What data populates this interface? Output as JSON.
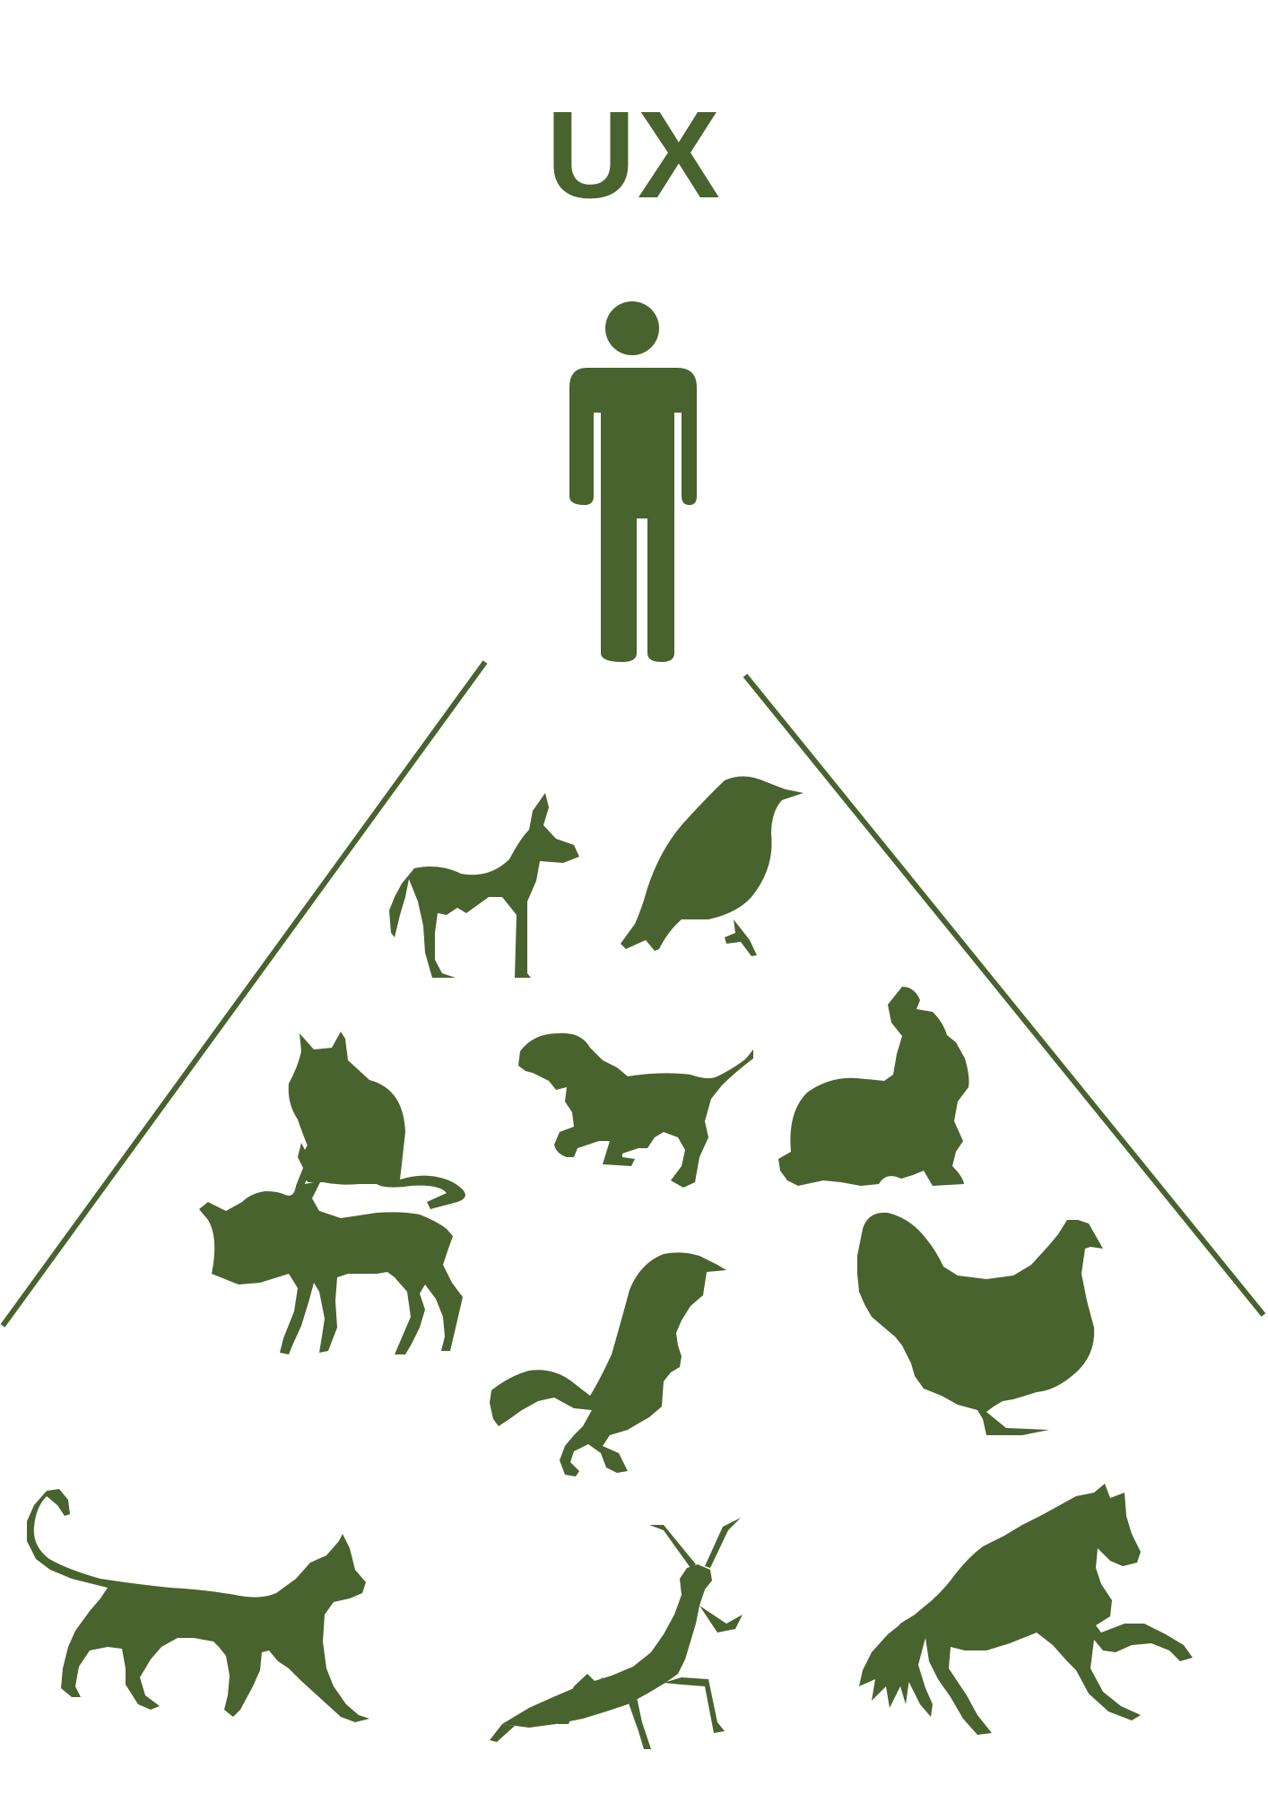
{
  "title": "UX",
  "colors": {
    "ink": "#48632D",
    "background": "#FFFFFF"
  },
  "user": {
    "icon": "person-icon"
  },
  "animals": [
    {
      "name": "donkey",
      "icon": "donkey-icon"
    },
    {
      "name": "bird",
      "icon": "bird-icon"
    },
    {
      "name": "cat",
      "icon": "cat-sitting-icon"
    },
    {
      "name": "dog",
      "icon": "dog-running-icon"
    },
    {
      "name": "rabbit",
      "icon": "rabbit-icon"
    },
    {
      "name": "deer",
      "icon": "deer-icon"
    },
    {
      "name": "fox",
      "icon": "fox-pouncing-icon"
    },
    {
      "name": "hen",
      "icon": "hen-icon"
    },
    {
      "name": "cat",
      "icon": "cat-walking-icon"
    },
    {
      "name": "mantis",
      "icon": "mantis-icon"
    },
    {
      "name": "horse",
      "icon": "horse-icon"
    }
  ]
}
